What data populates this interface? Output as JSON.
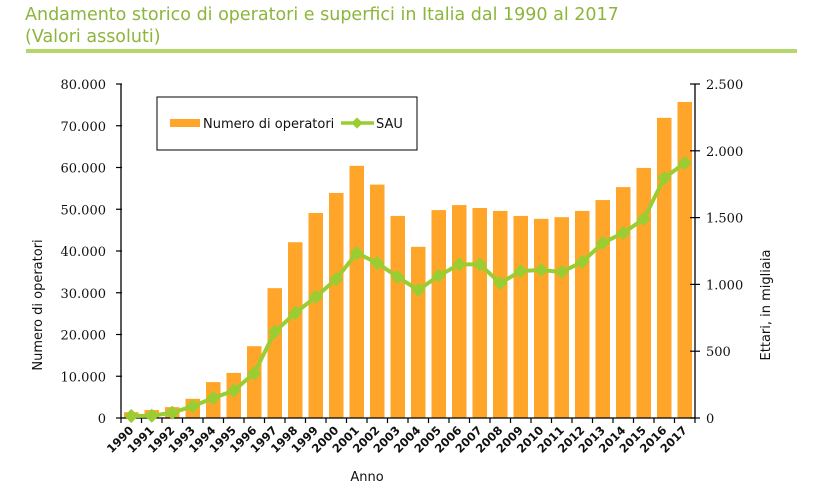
{
  "title_line1": "Andamento storico di operatori e superfici in Italia dal 1990 al 2017",
  "title_line2": "(Valori assoluti)",
  "colors": {
    "bars": "#ffa52a",
    "line": "#9acd32",
    "title": "#8db53c",
    "separator": "#b5d66a"
  },
  "chart_data": {
    "type": "bar+line",
    "title": "Andamento storico di operatori e superfici in Italia dal 1990 al 2017 (Valori assoluti)",
    "xlabel": "Anno",
    "ylabel_left": "Numero di operatori",
    "ylabel_right": "Ettari, in migliaia",
    "ylim_left": [
      0,
      80000
    ],
    "ylim_right": [
      0,
      2500
    ],
    "yticks_left": [
      "0",
      "10.000",
      "20.000",
      "30.000",
      "40.000",
      "50.000",
      "60.000",
      "70.000",
      "80.000"
    ],
    "yticks_right": [
      "0",
      "500",
      "1.000",
      "1.500",
      "2.000",
      "2.500"
    ],
    "legend_position": "top-left",
    "categories": [
      "1990",
      "1991",
      "1992",
      "1993",
      "1994",
      "1995",
      "1996",
      "1997",
      "1998",
      "1999",
      "2000",
      "2001",
      "2002",
      "2003",
      "2004",
      "2005",
      "2006",
      "2007",
      "2008",
      "2009",
      "2010",
      "2011",
      "2012",
      "2013",
      "2014",
      "2015",
      "2016",
      "2017"
    ],
    "series": [
      {
        "name": "Numero di operatori",
        "type": "bar",
        "axis": "left",
        "values": [
          1400,
          1900,
          2600,
          4600,
          8600,
          10800,
          17200,
          31100,
          42100,
          49100,
          53900,
          60400,
          55900,
          48400,
          41000,
          49800,
          51000,
          50300,
          49600,
          48400,
          47700,
          48100,
          49600,
          52200,
          55300,
          59900,
          71900,
          75700
        ]
      },
      {
        "name": "SAU",
        "type": "line",
        "axis": "right",
        "values": [
          15,
          17,
          40,
          88,
          150,
          205,
          335,
          645,
          786,
          906,
          1040,
          1235,
          1160,
          1055,
          958,
          1065,
          1150,
          1150,
          1010,
          1100,
          1108,
          1093,
          1168,
          1310,
          1385,
          1490,
          1796,
          1909
        ]
      }
    ]
  }
}
